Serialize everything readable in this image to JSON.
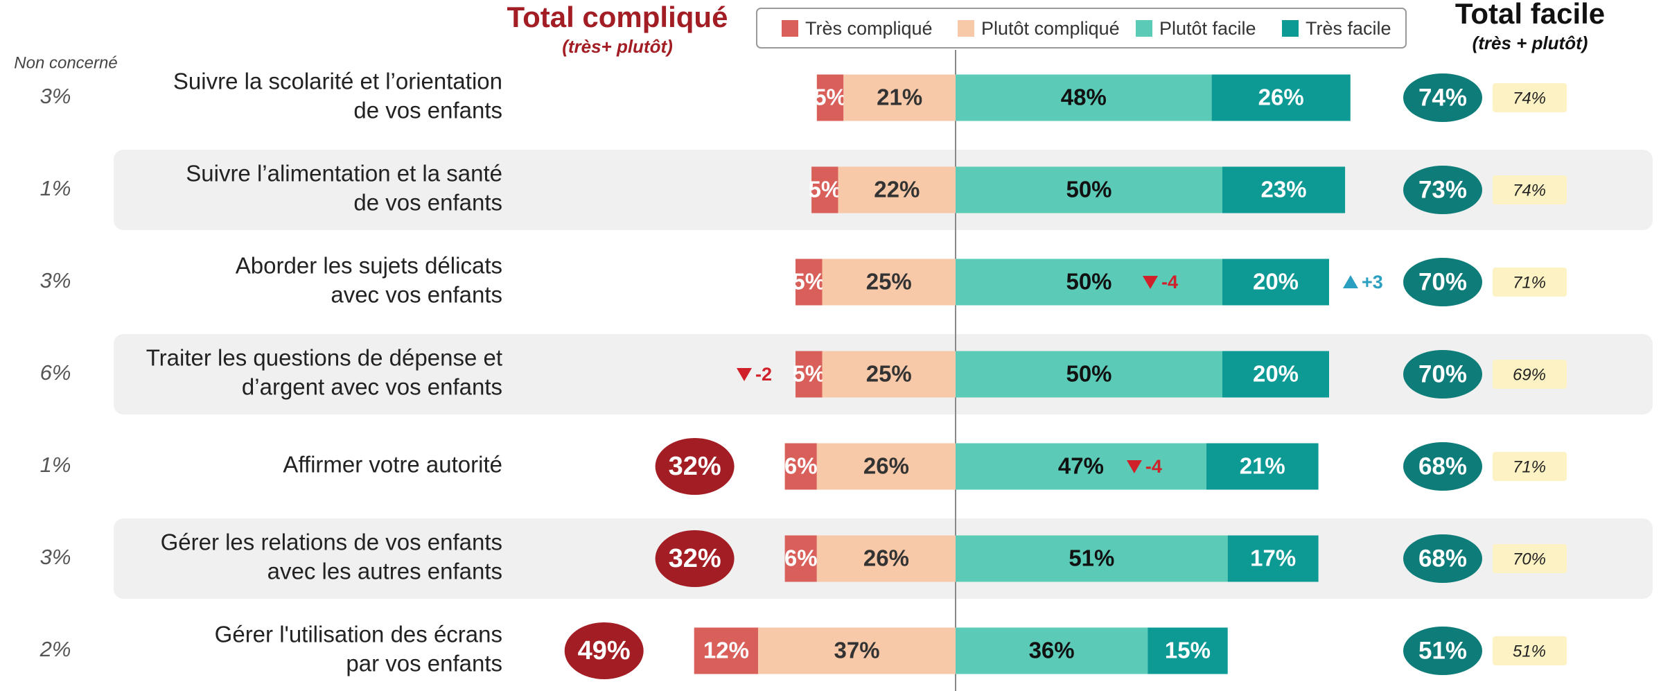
{
  "chart_data": {
    "type": "diverging_bar",
    "title": "Total compliqué",
    "subtitle": "(très+ plutôt)",
    "right_title": "Total facile",
    "right_subtitle": "(très + plutôt)",
    "not_concerned_label": "Non concerné",
    "categories": [
      [
        "Suivre la scolarité et l’orientation",
        "de vos enfants"
      ],
      [
        "Suivre l’alimentation et la santé",
        "de vos enfants"
      ],
      [
        "Aborder les sujets délicats",
        "avec vos enfants"
      ],
      [
        "Traiter les questions de dépense et",
        "d’argent avec vos enfants"
      ],
      [
        "Affirmer votre autorité"
      ],
      [
        "Gérer les relations de vos enfants",
        "avec les autres enfants"
      ],
      [
        "Gérer l'utilisation des écrans",
        "par vos enfants"
      ]
    ],
    "series": [
      {
        "name": "Très compliqué",
        "color": "#d9605a",
        "text_color": "#ffffff",
        "values": [
          5,
          5,
          5,
          5,
          6,
          6,
          12
        ],
        "value_labels": [
          "5%",
          "5%",
          "5%",
          "5%",
          "6%",
          "6%",
          "12%"
        ],
        "changes": [
          null,
          null,
          null,
          -2,
          null,
          null,
          null
        ],
        "change_labels": [
          null,
          null,
          null,
          "-2",
          null,
          null,
          null
        ]
      },
      {
        "name": "Plutôt compliqué",
        "color": "#f8c9a8",
        "text_color": "#333333",
        "values": [
          21,
          22,
          25,
          25,
          26,
          26,
          37
        ],
        "value_labels": [
          "21%",
          "22%",
          "25%",
          "25%",
          "26%",
          "26%",
          "37%"
        ]
      },
      {
        "name": "Plutôt facile",
        "color": "#5bcbb8",
        "text_color": "#111111",
        "values": [
          48,
          50,
          50,
          50,
          47,
          51,
          36
        ],
        "value_labels": [
          "48%",
          "50%",
          "50%",
          "50%",
          "47%",
          "51%",
          "36%"
        ],
        "changes": [
          null,
          null,
          -4,
          null,
          -4,
          null,
          null
        ],
        "change_labels": [
          null,
          null,
          "-4",
          null,
          "-4",
          null,
          null
        ]
      },
      {
        "name": "Très facile",
        "color": "#0e9a94",
        "text_color": "#ffffff",
        "values": [
          26,
          23,
          20,
          20,
          21,
          17,
          15
        ],
        "value_labels": [
          "26%",
          "23%",
          "20%",
          "20%",
          "21%",
          "17%",
          "15%"
        ],
        "changes": [
          null,
          null,
          3,
          null,
          null,
          null,
          null
        ],
        "change_labels": [
          null,
          null,
          "+3",
          null,
          null,
          null,
          null
        ]
      }
    ],
    "total_complicated": [
      null,
      null,
      null,
      null,
      32,
      32,
      49
    ],
    "total_complicated_labels": [
      null,
      null,
      null,
      null,
      "32%",
      "32%",
      "49%"
    ],
    "total_complicated_color": "#a31d24",
    "total_easy": [
      74,
      73,
      70,
      70,
      68,
      68,
      51
    ],
    "total_easy_labels": [
      "74%",
      "73%",
      "70%",
      "70%",
      "68%",
      "68%",
      "51%"
    ],
    "total_easy_color": "#0e7c78",
    "previous_total_easy": [
      74,
      74,
      71,
      69,
      71,
      70,
      51
    ],
    "previous_total_easy_labels": [
      "74%",
      "74%",
      "71%",
      "69%",
      "71%",
      "70%",
      "51%"
    ],
    "not_concerned": [
      3,
      1,
      3,
      6,
      1,
      3,
      2
    ],
    "not_concerned_labels": [
      "3%",
      "1%",
      "3%",
      "6%",
      "1%",
      "3%",
      "2%"
    ]
  }
}
